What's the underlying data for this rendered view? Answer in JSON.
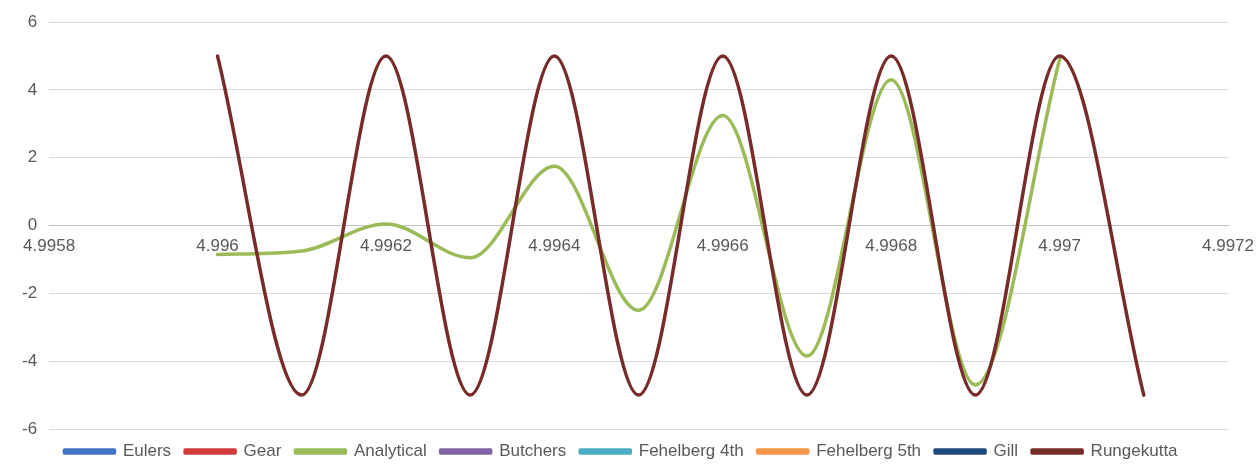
{
  "chart_data": {
    "type": "line",
    "x": [
      4.996,
      4.9961,
      4.9962,
      4.9963,
      4.9964,
      4.9965,
      4.9966,
      4.9967,
      4.9968,
      4.9969,
      4.997,
      4.9971
    ],
    "series": [
      {
        "name": "Eulers",
        "color": "#4472c4",
        "values": [
          null,
          null,
          null,
          null,
          null,
          null,
          null,
          null,
          null,
          null,
          null,
          null
        ]
      },
      {
        "name": "Gear",
        "color": "#d13b3b",
        "values": [
          null,
          null,
          null,
          null,
          null,
          null,
          null,
          null,
          null,
          null,
          null,
          null
        ]
      },
      {
        "name": "Analytical",
        "color": "#9bbb59",
        "values": [
          -0.85,
          -0.75,
          0.05,
          -0.95,
          1.75,
          -2.5,
          3.25,
          -3.85,
          4.3,
          -4.7,
          4.9,
          null
        ]
      },
      {
        "name": "Butchers",
        "color": "#8064a2",
        "values": [
          null,
          null,
          null,
          null,
          null,
          null,
          null,
          null,
          null,
          null,
          null,
          null
        ]
      },
      {
        "name": "Fehelberg 4th",
        "color": "#4bacc6",
        "values": [
          null,
          null,
          null,
          null,
          null,
          null,
          null,
          null,
          null,
          null,
          null,
          null
        ]
      },
      {
        "name": "Fehelberg 5th",
        "color": "#f79646",
        "values": [
          null,
          null,
          null,
          null,
          null,
          null,
          null,
          null,
          null,
          null,
          null,
          null
        ]
      },
      {
        "name": "Gill",
        "color": "#1f497d",
        "values": [
          null,
          null,
          null,
          null,
          null,
          null,
          null,
          null,
          null,
          null,
          null,
          null
        ]
      },
      {
        "name": "Rungekutta",
        "color": "#772c2a",
        "values": [
          5,
          -5,
          5,
          -5,
          5,
          -5,
          5,
          -5,
          5,
          -5,
          5,
          -5
        ]
      }
    ],
    "xlim": [
      4.9958,
      4.9972
    ],
    "xticks": [
      4.9958,
      4.996,
      4.9962,
      4.9964,
      4.9966,
      4.9968,
      4.997,
      4.9972
    ],
    "ylim": [
      -6,
      6
    ],
    "yticks": [
      -6,
      -4,
      -2,
      0,
      2,
      4,
      6
    ],
    "grid": "y",
    "legend": "bottom",
    "marker": "none",
    "line_style": "solid"
  }
}
